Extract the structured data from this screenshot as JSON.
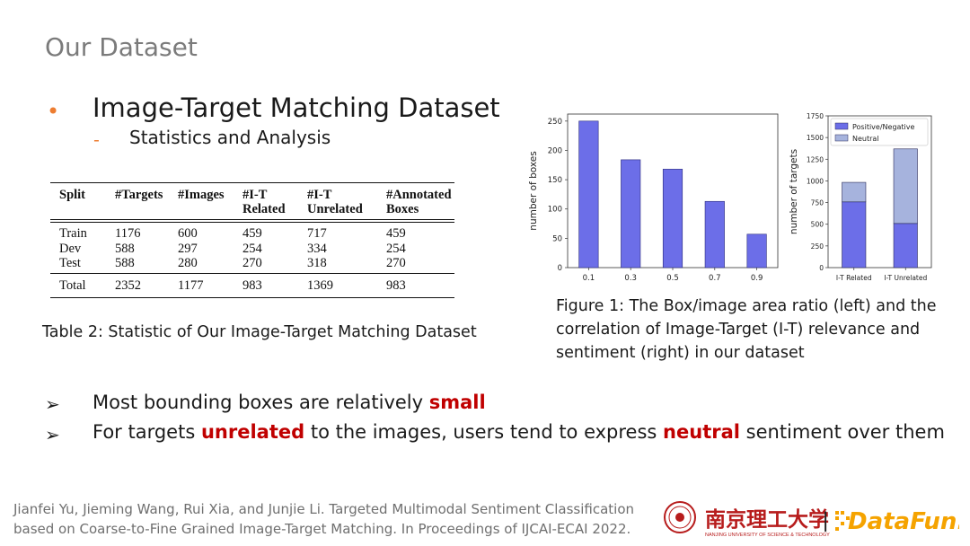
{
  "slide": {
    "title": "Our Dataset",
    "bullet": "Image-Target Matching Dataset",
    "sub_bullet": "Statistics and Analysis"
  },
  "table": {
    "headers": [
      [
        "Split",
        ""
      ],
      [
        "#Targets",
        ""
      ],
      [
        "#Images",
        ""
      ],
      [
        "#I-T",
        "Related"
      ],
      [
        "#I-T",
        "Unrelated"
      ],
      [
        "#Annotated",
        "Boxes"
      ]
    ],
    "rows": [
      [
        "Train",
        "1176",
        "600",
        "459",
        "717",
        "459"
      ],
      [
        "Dev",
        "588",
        "297",
        "254",
        "334",
        "254"
      ],
      [
        "Test",
        "588",
        "280",
        "270",
        "318",
        "270"
      ]
    ],
    "total": [
      "Total",
      "2352",
      "1177",
      "983",
      "1369",
      "983"
    ],
    "caption": "Table 2: Statistic of Our Image-Target Matching Dataset"
  },
  "chart_data": [
    {
      "type": "bar",
      "categories": [
        "0.1",
        "0.3",
        "0.5",
        "0.7",
        "0.9"
      ],
      "values": [
        250,
        184,
        168,
        113,
        57
      ],
      "ylabel": "number of boxes",
      "ylim": [
        0,
        262
      ],
      "yticks": [
        0,
        50,
        100,
        150,
        200,
        250
      ],
      "color": "#6c6ee8"
    },
    {
      "type": "bar",
      "stacked": true,
      "categories": [
        "I-T Related",
        "I-T Unrelated"
      ],
      "series": [
        {
          "name": "Positive/Negative",
          "values": [
            758,
            509
          ],
          "color": "#6c6ee8"
        },
        {
          "name": "Neutral",
          "values": [
            225,
            860
          ],
          "color": "#a6b3dd"
        }
      ],
      "ylabel": "number of targets",
      "ylim": [
        0,
        1750
      ],
      "yticks": [
        0,
        250,
        500,
        750,
        1000,
        1250,
        1500,
        1750
      ],
      "legend": "top-left"
    }
  ],
  "figure_caption": "Figure 1: The Box/image area ratio (left) and the correlation of Image-Target (I-T) relevance and sentiment (right) in our dataset",
  "conclusions": [
    {
      "pre": "Most bounding boxes are relatively ",
      "hl": "small",
      "mid": "",
      "hl2": "",
      "post": ""
    },
    {
      "pre": "For targets ",
      "hl": "unrelated",
      "mid": " to the images, users tend to express ",
      "hl2": "neutral",
      "post": " sentiment over them"
    }
  ],
  "citation": [
    "Jianfei Yu, Jieming Wang, Rui Xia, and Junjie Li. Targeted Multimodal Sentiment Classification",
    "based on Coarse-to-Fine Grained Image-Target Matching. In Proceedings of IJCAI-ECAI 2022."
  ],
  "logos": {
    "university_cn": "南京理工大学",
    "university_en": "NANJING UNIVERSITY OF SCIENCE & TECHNOLOGY",
    "separator": "|",
    "brand": "DataFun."
  },
  "colors": {
    "accent_orange": "#ed7d31",
    "highlight_red": "#c00000",
    "title_gray": "#7b7b7b",
    "university_red": "#b71c1c",
    "brand_orange": "#f5a300"
  }
}
